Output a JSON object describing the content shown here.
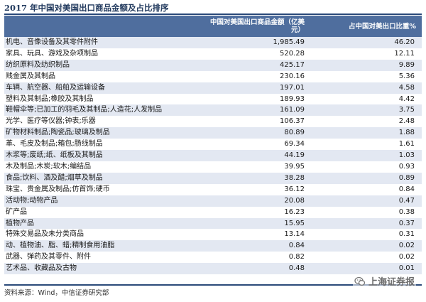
{
  "title": "2017 年中国对美国出口商品金额及占比排序",
  "table": {
    "headers": [
      "",
      "中国对美国出口商品金额（亿美元）",
      "占中国对美出口比重%"
    ],
    "rows": [
      {
        "name": "机电、音像设备及其零件附件",
        "amount": "1,985.49",
        "share": "46.20"
      },
      {
        "name": "家具、玩具、游戏及杂项制品",
        "amount": "520.28",
        "share": "12.11"
      },
      {
        "name": "纺织原料及纺织制品",
        "amount": "425.17",
        "share": "9.89"
      },
      {
        "name": "贱金属及其制品",
        "amount": "230.16",
        "share": "5.36"
      },
      {
        "name": "车辆、航空器、船舶及运输设备",
        "amount": "197.01",
        "share": "4.58"
      },
      {
        "name": "塑料及其制品;橡胶及其制品",
        "amount": "189.93",
        "share": "4.42"
      },
      {
        "name": "鞋帽伞等;已加工的羽毛及其制品;人造花;人发制品",
        "amount": "161.09",
        "share": "3.75"
      },
      {
        "name": "光学、医疗等仪器;钟表;乐器",
        "amount": "106.37",
        "share": "2.48"
      },
      {
        "name": "矿物材料制品;陶瓷品;玻璃及制品",
        "amount": "80.89",
        "share": "1.88"
      },
      {
        "name": "革、毛皮及制品;箱包;肠线制品",
        "amount": "69.34",
        "share": "1.61"
      },
      {
        "name": "木浆等;废纸;纸、纸板及其制品",
        "amount": "44.19",
        "share": "1.03"
      },
      {
        "name": "木及制品;木炭;软木;编结品",
        "amount": "39.95",
        "share": "0.93"
      },
      {
        "name": "食品;饮料、酒及醋;烟草及制品",
        "amount": "38.28",
        "share": "0.89"
      },
      {
        "name": "珠宝、贵金属及制品;仿首饰;硬币",
        "amount": "36.12",
        "share": "0.84"
      },
      {
        "name": "活动物;动物产品",
        "amount": "20.08",
        "share": "0.47"
      },
      {
        "name": "矿产品",
        "amount": "16.23",
        "share": "0.38"
      },
      {
        "name": "植物产品",
        "amount": "15.95",
        "share": "0.37"
      },
      {
        "name": "特殊交易品及未分类商品",
        "amount": "13.14",
        "share": "0.31"
      },
      {
        "name": "动、植物油、脂、蜡;精制食用油脂",
        "amount": "0.84",
        "share": "0.02"
      },
      {
        "name": "武器、弹药及其零件、附件",
        "amount": "0.82",
        "share": "0.02"
      },
      {
        "name": "艺术品、收藏品及古物",
        "amount": "0.48",
        "share": "0.01"
      }
    ]
  },
  "source": "资料来源：Wind，中信证券研究部",
  "watermark": "上海证券报",
  "colors": {
    "header_bg": "#4f6e9e",
    "stripe": "#e3e8f2",
    "rule": "#2b4a7a"
  }
}
